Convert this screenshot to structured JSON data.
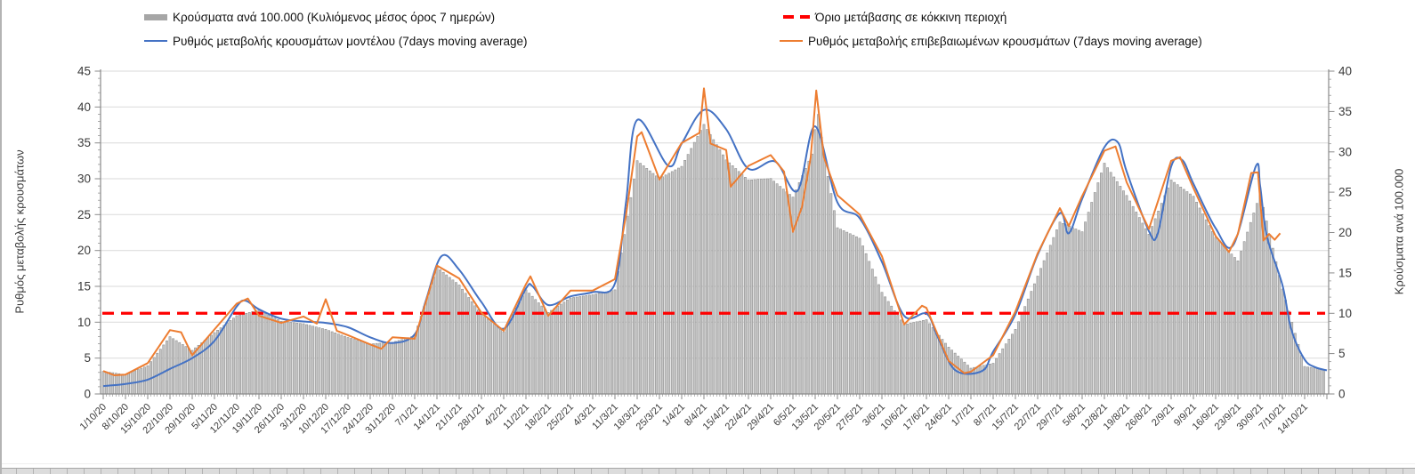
{
  "legend": {
    "cases": {
      "label": "Κρούσματα ανά 100.000 (Κυλιόμενος μέσος όρος 7 ημερών)",
      "color": "#a6a6a6"
    },
    "model": {
      "label": "Ρυθμός μεταβολής κρουσμάτων μοντέλου (7days moving average)",
      "color": "#4472c4"
    },
    "threshold": {
      "label": "Όριο μετάβασης σε κόκκινη περιοχή",
      "color": "#ff0000"
    },
    "confirmed": {
      "label": "Ρυθμός μεταβολής επιβεβαιωμένων κρουσμάτων (7days moving average)",
      "color": "#ed7d31"
    }
  },
  "chart_data": {
    "type": "bar+line combo",
    "x_axis": {
      "tick_unit": "weekly",
      "minor_tick_unit": "daily",
      "tick_labels": [
        "1/10/20",
        "8/10/20",
        "15/10/20",
        "22/10/20",
        "29/10/20",
        "5/11/20",
        "12/11/20",
        "19/11/20",
        "26/11/20",
        "3/12/20",
        "10/12/20",
        "17/12/20",
        "24/12/20",
        "31/12/20",
        "7/1/21",
        "14/1/21",
        "21/1/21",
        "28/1/21",
        "4/2/21",
        "11/2/21",
        "18/2/21",
        "25/2/21",
        "4/3/21",
        "11/3/21",
        "18/3/21",
        "25/3/21",
        "1/4/21",
        "8/4/21",
        "15/4/21",
        "22/4/21",
        "29/4/21",
        "6/5/21",
        "13/5/21",
        "20/5/21",
        "27/5/21",
        "3/6/21",
        "10/6/21",
        "17/6/21",
        "24/6/21",
        "1/7/21",
        "8/7/21",
        "15/7/21",
        "22/7/21",
        "29/7/21",
        "5/8/21",
        "12/8/21",
        "19/8/21",
        "26/8/21",
        "2/9/21",
        "9/9/21",
        "16/9/21",
        "23/9/21",
        "30/9/21",
        "7/10/21",
        "14/10/21"
      ]
    },
    "left_axis": {
      "title": "Ρυθμός μεταβολής κρουσμάτων",
      "min": 0,
      "max": 45,
      "tick_step": 5,
      "ticks": [
        0,
        5,
        10,
        15,
        20,
        25,
        30,
        35,
        40,
        45
      ]
    },
    "right_axis": {
      "title": "Κρούσματα ανά 100.000",
      "min": 0,
      "max": 40,
      "tick_step": 5,
      "ticks": [
        0,
        5,
        10,
        15,
        20,
        25,
        30,
        35,
        40
      ]
    },
    "grid": {
      "horizontal_every_left_units": 5,
      "color": "#dadada"
    },
    "threshold_line": {
      "label": "Όριο μετάβασης σε κόκκινη περιοχή",
      "axis": "right",
      "value": 10,
      "color": "#ff0000",
      "style": "dashed"
    },
    "series": [
      {
        "name": "Κρούσματα ανά 100.000 (Κυλιόμενος μέσος όρος 7 ημερών)",
        "type": "bar",
        "axis": "right",
        "color": "#a6a6a6",
        "x_unit": "weeks since 1/10/20 (fractions allowed)",
        "points": [
          [
            0,
            2.8
          ],
          [
            1,
            2.4
          ],
          [
            2,
            3.5
          ],
          [
            3,
            7.1
          ],
          [
            4,
            5.4
          ],
          [
            5,
            7.6
          ],
          [
            6,
            9.7
          ],
          [
            7,
            10.4
          ],
          [
            8,
            9.0
          ],
          [
            9,
            8.7
          ],
          [
            10,
            8.0
          ],
          [
            11,
            7.0
          ],
          [
            12,
            6.2
          ],
          [
            13,
            6.4
          ],
          [
            14,
            7.2
          ],
          [
            15,
            15.7
          ],
          [
            16,
            13.5
          ],
          [
            17,
            9.9
          ],
          [
            18,
            7.7
          ],
          [
            19,
            12.9
          ],
          [
            20,
            10.1
          ],
          [
            21,
            11.9
          ],
          [
            22,
            12.3
          ],
          [
            23,
            12.9
          ],
          [
            24,
            28.9
          ],
          [
            25,
            26.7
          ],
          [
            26,
            28.2
          ],
          [
            27,
            33.4
          ],
          [
            28,
            29.0
          ],
          [
            29,
            26.5
          ],
          [
            30,
            26.7
          ],
          [
            31,
            24.4
          ],
          [
            31.9,
            30.0
          ],
          [
            32.1,
            35.5
          ],
          [
            32.4,
            29.5
          ],
          [
            33,
            20.6
          ],
          [
            34,
            19.3
          ],
          [
            35,
            12.6
          ],
          [
            36,
            8.6
          ],
          [
            37,
            9.2
          ],
          [
            38,
            5.8
          ],
          [
            39,
            3.2
          ],
          [
            40,
            3.8
          ],
          [
            41,
            8.0
          ],
          [
            42,
            14.6
          ],
          [
            43,
            21.3
          ],
          [
            44,
            20.1
          ],
          [
            45,
            28.6
          ],
          [
            46,
            24.6
          ],
          [
            47,
            19.8
          ],
          [
            48,
            26.5
          ],
          [
            49,
            24.5
          ],
          [
            50,
            19.4
          ],
          [
            51,
            16.5
          ],
          [
            52,
            24.8
          ],
          [
            53,
            13.0
          ],
          [
            54,
            3.4
          ],
          [
            55,
            3.0
          ]
        ]
      },
      {
        "name": "Ρυθμός μεταβολής κρουσμάτων μοντέλου (7days moving average)",
        "type": "line",
        "axis": "left",
        "color": "#4472c4",
        "smooth": true,
        "points": [
          [
            0,
            1.1
          ],
          [
            1,
            1.4
          ],
          [
            2,
            2.0
          ],
          [
            3,
            3.5
          ],
          [
            4,
            5.0
          ],
          [
            5,
            7.4
          ],
          [
            6,
            12.2
          ],
          [
            6.4,
            13.0
          ],
          [
            7,
            11.8
          ],
          [
            8,
            10.5
          ],
          [
            9,
            10.1
          ],
          [
            10,
            9.9
          ],
          [
            11,
            9.3
          ],
          [
            12,
            7.9
          ],
          [
            13,
            7.1
          ],
          [
            14,
            8.3
          ],
          [
            14.5,
            13.0
          ],
          [
            15.2,
            19.2
          ],
          [
            16,
            17.3
          ],
          [
            17,
            12.8
          ],
          [
            18,
            9.1
          ],
          [
            19,
            14.7
          ],
          [
            19.3,
            15.0
          ],
          [
            20,
            12.4
          ],
          [
            21,
            13.6
          ],
          [
            22,
            14.2
          ],
          [
            23,
            15.4
          ],
          [
            23.5,
            26.8
          ],
          [
            24,
            38.2
          ],
          [
            25.4,
            31.8
          ],
          [
            26,
            34.9
          ],
          [
            27,
            39.6
          ],
          [
            28,
            36.9
          ],
          [
            29,
            31.4
          ],
          [
            30.2,
            32.4
          ],
          [
            31.2,
            28.3
          ],
          [
            32,
            37.3
          ],
          [
            33,
            26.7
          ],
          [
            34,
            24.5
          ],
          [
            35,
            18.4
          ],
          [
            36,
            10.9
          ],
          [
            37,
            11.2
          ],
          [
            37.5,
            8.0
          ],
          [
            38.3,
            3.3
          ],
          [
            39.5,
            3.2
          ],
          [
            40,
            5.9
          ],
          [
            41,
            11.1
          ],
          [
            42,
            19.4
          ],
          [
            43,
            25.2
          ],
          [
            43.4,
            22.4
          ],
          [
            44,
            27.2
          ],
          [
            45,
            34.4
          ],
          [
            45.6,
            35.1
          ],
          [
            46,
            31.0
          ],
          [
            47,
            22.7
          ],
          [
            47.4,
            22.4
          ],
          [
            48,
            31.7
          ],
          [
            48.5,
            32.6
          ],
          [
            49,
            29.3
          ],
          [
            50,
            23.1
          ],
          [
            50.8,
            20.8
          ],
          [
            51.8,
            31.7
          ],
          [
            52,
            29.0
          ],
          [
            52.3,
            22.0
          ],
          [
            53,
            15.2
          ],
          [
            53.4,
            9.0
          ],
          [
            54,
            4.8
          ],
          [
            54.5,
            3.7
          ],
          [
            55,
            3.3
          ]
        ]
      },
      {
        "name": "Ρυθμός μεταβολής επιβεβαιωμένων κρουσμάτων (7days moving average)",
        "type": "line",
        "axis": "left",
        "color": "#ed7d31",
        "smooth": false,
        "points": [
          [
            0,
            3.2
          ],
          [
            0.5,
            2.6
          ],
          [
            1,
            2.7
          ],
          [
            2,
            4.3
          ],
          [
            3,
            8.9
          ],
          [
            3.5,
            8.6
          ],
          [
            4,
            5.4
          ],
          [
            5,
            9.0
          ],
          [
            6,
            12.6
          ],
          [
            6.5,
            13.3
          ],
          [
            7,
            10.9
          ],
          [
            8,
            9.9
          ],
          [
            9,
            10.8
          ],
          [
            9.6,
            9.8
          ],
          [
            10,
            13.2
          ],
          [
            10.5,
            8.8
          ],
          [
            11,
            8.2
          ],
          [
            12,
            6.9
          ],
          [
            12.5,
            6.3
          ],
          [
            13,
            7.9
          ],
          [
            14,
            7.7
          ],
          [
            15,
            17.9
          ],
          [
            16,
            16.1
          ],
          [
            17,
            11.3
          ],
          [
            18,
            8.8
          ],
          [
            19,
            15.3
          ],
          [
            19.2,
            16.4
          ],
          [
            20,
            10.9
          ],
          [
            21,
            14.4
          ],
          [
            22,
            14.4
          ],
          [
            23,
            16.0
          ],
          [
            23.5,
            25.0
          ],
          [
            24,
            35.9
          ],
          [
            24.2,
            36.5
          ],
          [
            25,
            29.9
          ],
          [
            26,
            35.0
          ],
          [
            26.8,
            36.4
          ],
          [
            27,
            42.6
          ],
          [
            27.3,
            34.9
          ],
          [
            28,
            34.0
          ],
          [
            28.2,
            28.9
          ],
          [
            29,
            31.8
          ],
          [
            30,
            33.3
          ],
          [
            30.6,
            31.0
          ],
          [
            31,
            22.6
          ],
          [
            31.4,
            26.0
          ],
          [
            31.8,
            33.0
          ],
          [
            32.05,
            42.3
          ],
          [
            32.4,
            32.9
          ],
          [
            33,
            27.7
          ],
          [
            34,
            25.0
          ],
          [
            35,
            19.2
          ],
          [
            36,
            9.7
          ],
          [
            36.8,
            12.3
          ],
          [
            37,
            12.0
          ],
          [
            38,
            4.6
          ],
          [
            38.7,
            2.9
          ],
          [
            39,
            3.1
          ],
          [
            40,
            5.4
          ],
          [
            41,
            11.5
          ],
          [
            42,
            19.6
          ],
          [
            43,
            25.9
          ],
          [
            43.4,
            23.4
          ],
          [
            44,
            27.6
          ],
          [
            45,
            33.9
          ],
          [
            45.5,
            34.5
          ],
          [
            46,
            29.5
          ],
          [
            47,
            23.0
          ],
          [
            48,
            32.5
          ],
          [
            48.4,
            33.0
          ],
          [
            49,
            28.7
          ],
          [
            50,
            22.0
          ],
          [
            50.6,
            19.8
          ],
          [
            51,
            22.3
          ],
          [
            51.6,
            30.8
          ],
          [
            51.9,
            30.9
          ],
          [
            52.15,
            21.4
          ],
          [
            52.4,
            22.3
          ],
          [
            52.65,
            21.5
          ],
          [
            52.9,
            22.4
          ]
        ]
      }
    ]
  }
}
